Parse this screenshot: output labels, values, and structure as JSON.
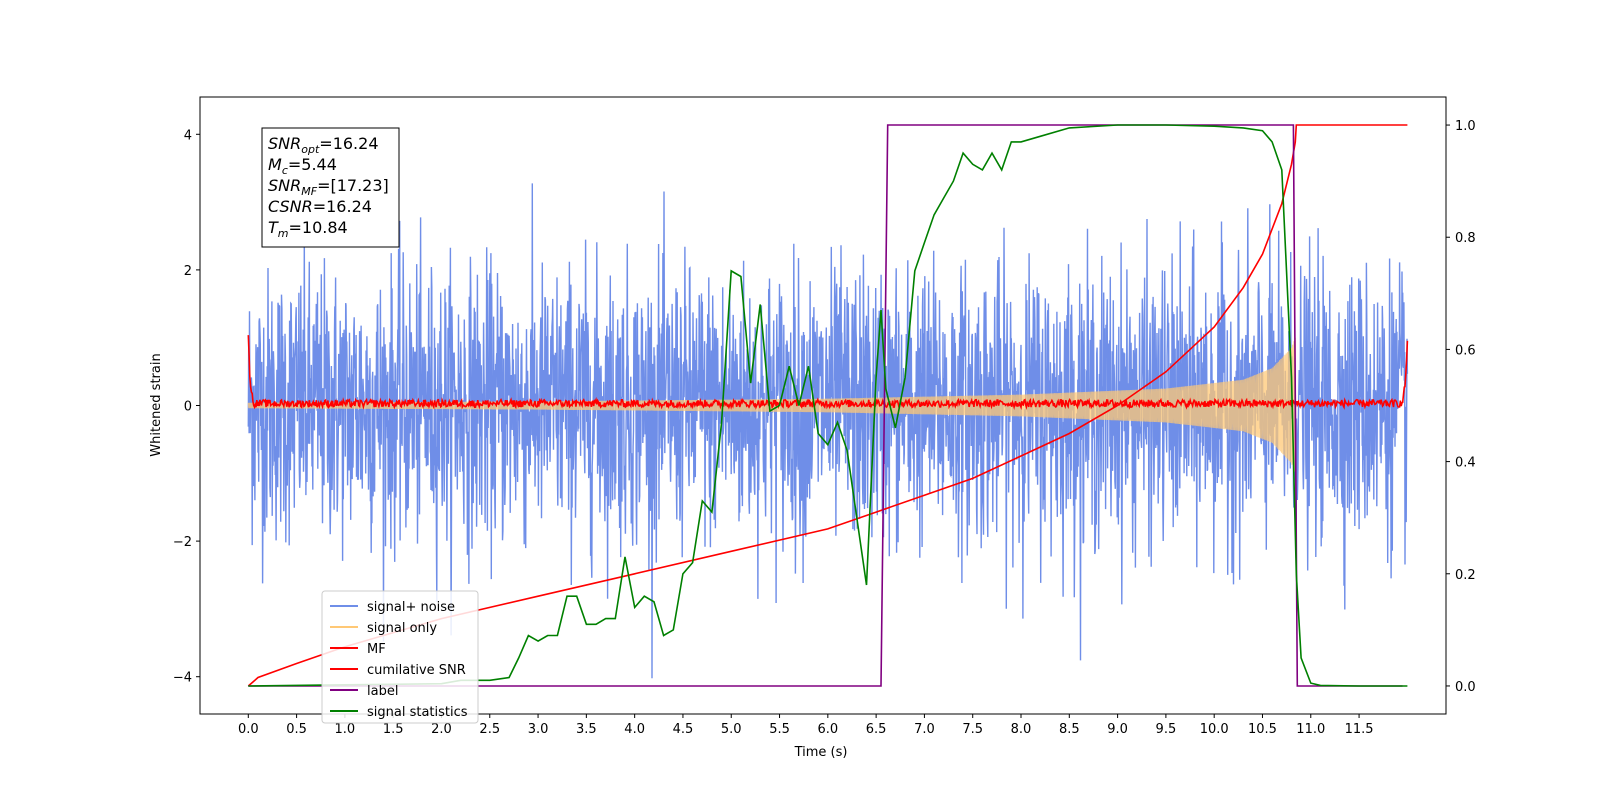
{
  "chart_data": {
    "type": "line",
    "xlabel": "Time (s)",
    "ylabel": "Whitened strain",
    "xlim": [
      -0.5,
      12.4
    ],
    "ylim": [
      -4.55,
      4.55
    ],
    "y2lim": [
      -0.05,
      1.05
    ],
    "x_ticks": [
      0.0,
      0.5,
      1.0,
      1.5,
      2.0,
      2.5,
      3.0,
      3.5,
      4.0,
      4.5,
      5.0,
      5.5,
      6.0,
      6.5,
      7.0,
      7.5,
      8.0,
      8.5,
      9.0,
      9.5,
      10.0,
      10.5,
      11.0,
      11.5
    ],
    "x_tick_labels": [
      "0.0",
      "0.5",
      "1.0",
      "1.5",
      "2.0",
      "2.5",
      "3.0",
      "3.5",
      "4.0",
      "4.5",
      "5.0",
      "5.5",
      "6.0",
      "6.5",
      "7.0",
      "7.5",
      "8.0",
      "8.5",
      "9.0",
      "9.5",
      "10.0",
      "10.5",
      "11.0",
      "11.5"
    ],
    "y_ticks": [
      -4,
      -2,
      0,
      2,
      4
    ],
    "y_tick_labels": [
      "−4",
      "−2",
      "0",
      "2",
      "4"
    ],
    "y2_ticks": [
      0.0,
      0.2,
      0.4,
      0.6,
      0.8,
      1.0
    ],
    "y2_tick_labels": [
      "0.0",
      "0.2",
      "0.4",
      "0.6",
      "0.8",
      "1.0"
    ],
    "legend_position": "lower-left",
    "legend": [
      {
        "name": "signal+ noise",
        "color": "#6f8ee8"
      },
      {
        "name": "signal only",
        "color": "#ffc875"
      },
      {
        "name": "MF",
        "color": "#ff0000"
      },
      {
        "name": "cumilative SNR",
        "color": "#ff0000"
      },
      {
        "name": "label",
        "color": "#800080"
      },
      {
        "name": "signal statistics",
        "color": "#008000"
      }
    ],
    "annotation": [
      {
        "sym": "SNR",
        "sub": "opt",
        "value": "=16.24"
      },
      {
        "sym": "M",
        "sub": "c",
        "value": "=5.44"
      },
      {
        "sym": "SNR",
        "sub": "MF",
        "value": "=[17.23]"
      },
      {
        "sym": "CSNR",
        "sub": "",
        "value": "=16.24"
      },
      {
        "sym": "T",
        "sub": "m",
        "value": "=10.84"
      }
    ],
    "series": [
      {
        "name": "signal+ noise",
        "axis": "left",
        "color": "#6f8ee8",
        "noise_sigma": 1.0,
        "x_range": [
          0.0,
          12.0
        ],
        "samples": 3000
      },
      {
        "name": "signal only",
        "axis": "left",
        "color": "#ffc875",
        "envelope": {
          "x": [
            0.0,
            3.0,
            6.0,
            8.0,
            9.5,
            10.3,
            10.6,
            10.8,
            10.84
          ],
          "amp": [
            0.04,
            0.06,
            0.1,
            0.16,
            0.25,
            0.38,
            0.55,
            0.85,
            1.0
          ]
        }
      },
      {
        "name": "MF",
        "axis": "left",
        "color": "#ff0000",
        "x": [
          0.0,
          0.02,
          0.05,
          11.95,
          11.98,
          12.0
        ],
        "y": [
          1.0,
          0.35,
          0.03,
          0.03,
          0.35,
          0.9
        ],
        "noise_amp": 0.07
      },
      {
        "name": "cumilative SNR",
        "axis": "right",
        "color": "#ff0000",
        "x": [
          0.0,
          0.1,
          0.5,
          1.0,
          2.0,
          3.0,
          4.0,
          5.0,
          6.0,
          6.5,
          7.0,
          7.5,
          8.0,
          8.5,
          9.0,
          9.5,
          10.0,
          10.3,
          10.5,
          10.7,
          10.8,
          10.84,
          10.85,
          12.0
        ],
        "y": [
          0.0,
          0.015,
          0.04,
          0.07,
          0.12,
          0.16,
          0.2,
          0.24,
          0.28,
          0.31,
          0.34,
          0.37,
          0.41,
          0.45,
          0.5,
          0.56,
          0.64,
          0.71,
          0.77,
          0.86,
          0.93,
          0.97,
          1.0,
          1.0
        ]
      },
      {
        "name": "label",
        "axis": "right",
        "color": "#800080",
        "x": [
          0.0,
          6.55,
          6.62,
          10.82,
          10.86,
          11.95
        ],
        "y": [
          0.0,
          0.0,
          1.0,
          1.0,
          0.0,
          0.0
        ]
      },
      {
        "name": "signal statistics",
        "axis": "right",
        "color": "#008000",
        "x": [
          0.0,
          1.0,
          2.0,
          2.2,
          2.5,
          2.7,
          2.8,
          2.9,
          3.0,
          3.1,
          3.2,
          3.3,
          3.4,
          3.5,
          3.6,
          3.7,
          3.8,
          3.9,
          4.0,
          4.1,
          4.2,
          4.3,
          4.4,
          4.5,
          4.6,
          4.7,
          4.8,
          4.9,
          5.0,
          5.1,
          5.2,
          5.3,
          5.4,
          5.5,
          5.6,
          5.7,
          5.8,
          5.9,
          6.0,
          6.1,
          6.2,
          6.3,
          6.4,
          6.5,
          6.55,
          6.6,
          6.7,
          6.8,
          6.9,
          7.0,
          7.1,
          7.2,
          7.3,
          7.4,
          7.5,
          7.6,
          7.7,
          7.8,
          7.9,
          8.0,
          8.2,
          8.5,
          9.0,
          9.5,
          10.0,
          10.3,
          10.5,
          10.6,
          10.7,
          10.8,
          10.85,
          10.9,
          11.0,
          11.1,
          11.5,
          12.0
        ],
        "y": [
          0.0,
          0.002,
          0.004,
          0.01,
          0.01,
          0.015,
          0.05,
          0.09,
          0.08,
          0.09,
          0.09,
          0.16,
          0.16,
          0.11,
          0.11,
          0.12,
          0.12,
          0.23,
          0.14,
          0.16,
          0.15,
          0.09,
          0.1,
          0.2,
          0.22,
          0.33,
          0.31,
          0.47,
          0.74,
          0.73,
          0.54,
          0.68,
          0.49,
          0.5,
          0.57,
          0.5,
          0.57,
          0.45,
          0.43,
          0.47,
          0.42,
          0.3,
          0.18,
          0.55,
          0.67,
          0.53,
          0.46,
          0.55,
          0.74,
          0.79,
          0.84,
          0.87,
          0.9,
          0.95,
          0.93,
          0.92,
          0.95,
          0.92,
          0.97,
          0.97,
          0.98,
          0.995,
          1.0,
          1.0,
          0.998,
          0.995,
          0.99,
          0.97,
          0.92,
          0.55,
          0.2,
          0.05,
          0.005,
          0.001,
          0.0,
          0.0
        ]
      }
    ]
  }
}
